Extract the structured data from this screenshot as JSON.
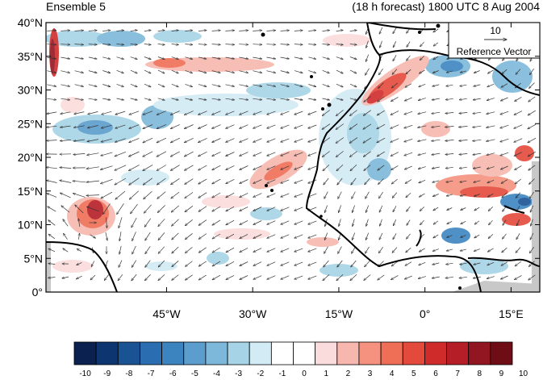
{
  "header": {
    "left_title": "Ensemble 5",
    "right_title": "(18 h forecast) 1800 UTC 8 Aug 2004"
  },
  "map": {
    "lat_labels": [
      "40°N",
      "35°N",
      "30°N",
      "25°N",
      "20°N",
      "15°N",
      "10°N",
      "5°N",
      "0°"
    ],
    "lon_labels": [
      "45°W",
      "30°W",
      "15°W",
      "0°",
      "15°E"
    ],
    "lon_range": [
      -66,
      20
    ],
    "lat_range": [
      0,
      40
    ],
    "reference_vector": {
      "value": "10",
      "label": "Reference Vector"
    }
  },
  "colorbar": {
    "labels": [
      "-10",
      "-9",
      "-8",
      "-7",
      "-6",
      "-5",
      "-4",
      "-3",
      "-2",
      "-1",
      "0",
      "1",
      "2",
      "3",
      "4",
      "5",
      "6",
      "7",
      "8",
      "9",
      "10"
    ],
    "colors": [
      "#0b2150",
      "#0d3570",
      "#1a5394",
      "#2a6db0",
      "#3c84c0",
      "#5b9dcd",
      "#7db8da",
      "#a6d4e6",
      "#d2ebf5",
      "#ffffff",
      "#ffffff",
      "#fbdcdc",
      "#f7b7ae",
      "#f4927f",
      "#ef6e56",
      "#e44a3b",
      "#d02b2b",
      "#b51d27",
      "#921621",
      "#6f0d17"
    ]
  }
}
